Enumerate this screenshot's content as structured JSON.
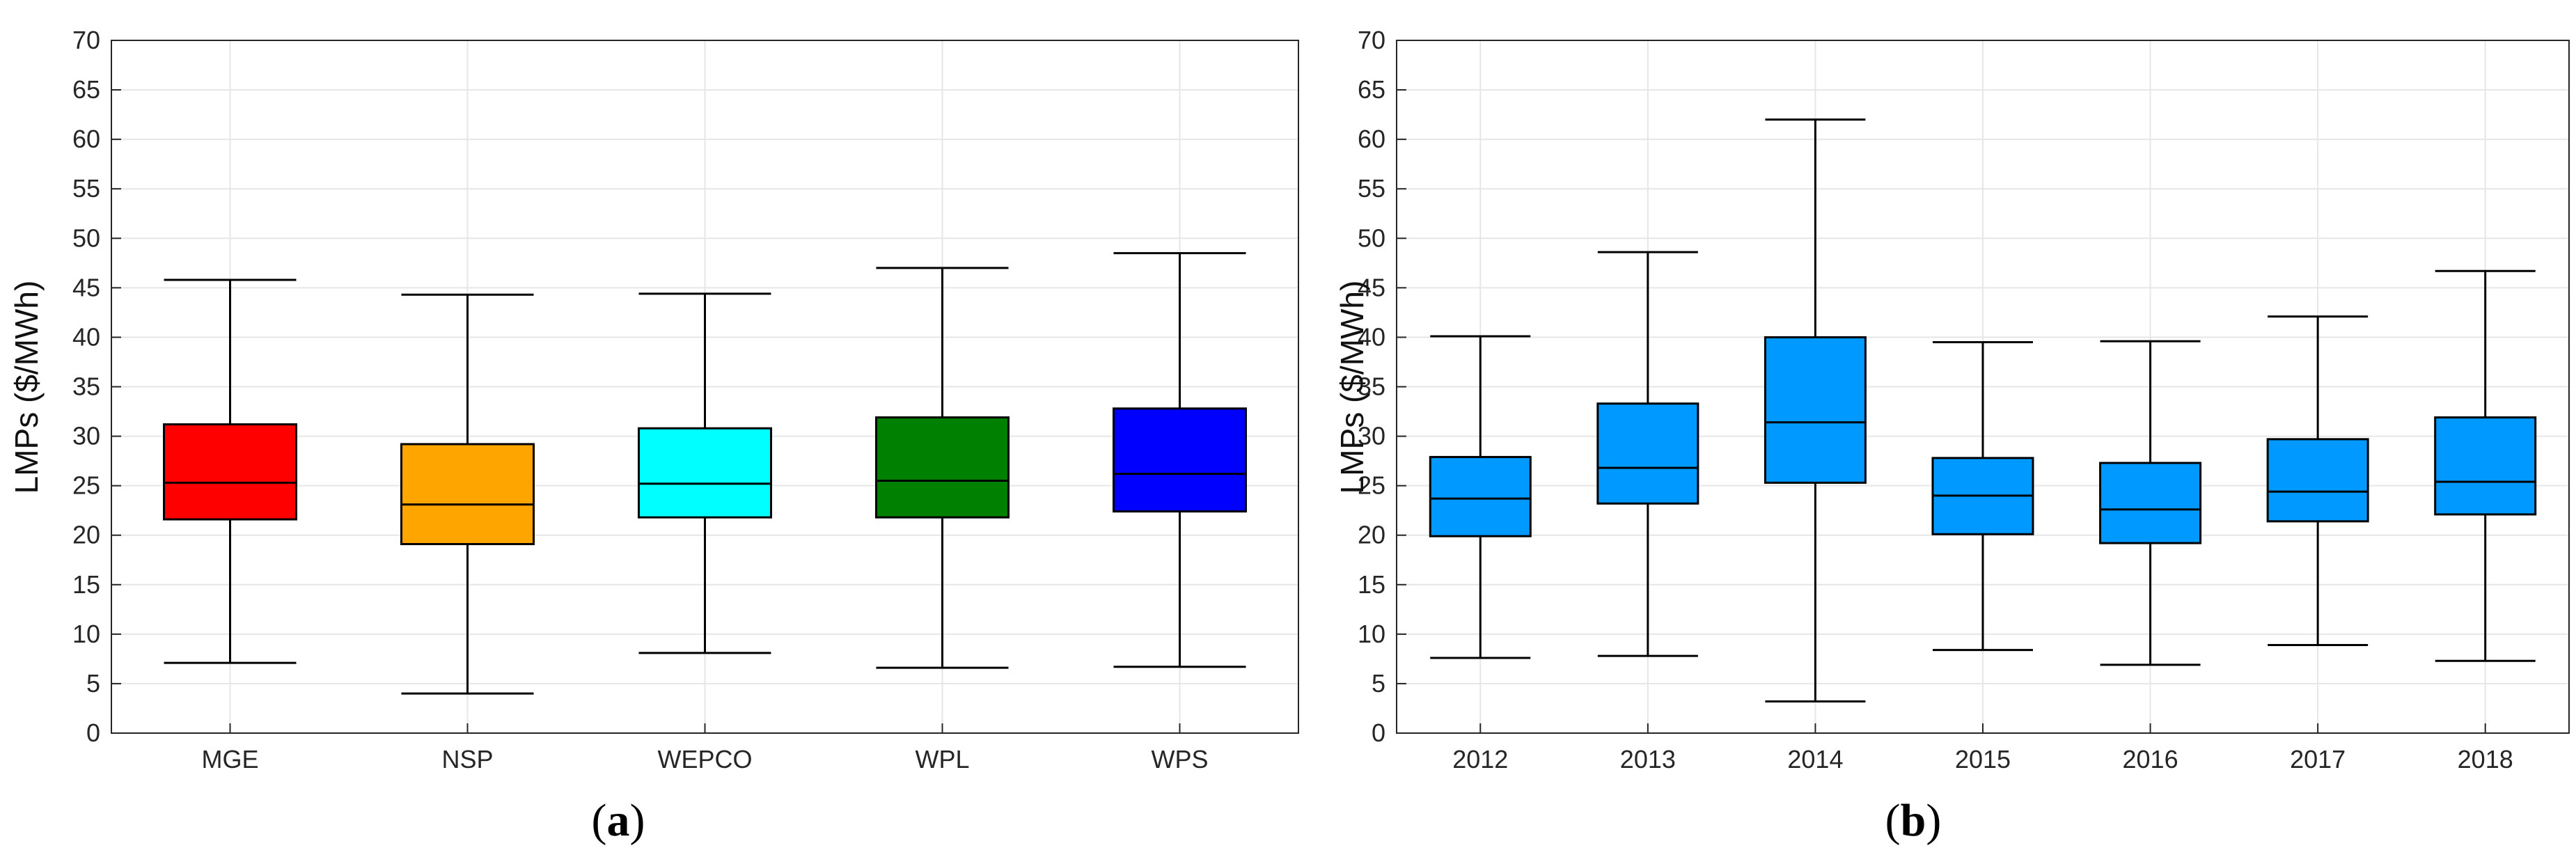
{
  "chart_data": [
    {
      "type": "box",
      "panel_label": "(a)",
      "panel_letter": "a",
      "ylabel": "LMPs ($/MWh)",
      "xlabel": "",
      "ylim": [
        0,
        70
      ],
      "yticks": [
        "0",
        "5",
        "10",
        "15",
        "20",
        "25",
        "30",
        "35",
        "40",
        "45",
        "50",
        "55",
        "60",
        "65",
        "70"
      ],
      "grid": true,
      "categories": [
        "MGE",
        "NSP",
        "WEPCO",
        "WPL",
        "WPS"
      ],
      "colors": [
        "#ff0000",
        "#ffa500",
        "#00ffff",
        "#008000",
        "#0000ff"
      ],
      "boxes": [
        {
          "whisker_low": 7.1,
          "q1": 21.6,
          "median": 25.3,
          "q3": 31.2,
          "whisker_high": 45.8
        },
        {
          "whisker_low": 4.0,
          "q1": 19.1,
          "median": 23.1,
          "q3": 29.2,
          "whisker_high": 44.3
        },
        {
          "whisker_low": 8.1,
          "q1": 21.8,
          "median": 25.2,
          "q3": 30.8,
          "whisker_high": 44.4
        },
        {
          "whisker_low": 6.6,
          "q1": 21.8,
          "median": 25.5,
          "q3": 31.9,
          "whisker_high": 47.0
        },
        {
          "whisker_low": 6.7,
          "q1": 22.4,
          "median": 26.2,
          "q3": 32.8,
          "whisker_high": 48.5
        }
      ]
    },
    {
      "type": "box",
      "panel_label": "(b)",
      "panel_letter": "b",
      "ylabel": "LMPs ($/MWh)",
      "xlabel": "",
      "ylim": [
        0,
        70
      ],
      "yticks": [
        "0",
        "5",
        "10",
        "15",
        "20",
        "25",
        "30",
        "35",
        "40",
        "45",
        "50",
        "55",
        "60",
        "65",
        "70"
      ],
      "grid": true,
      "categories": [
        "2012",
        "2013",
        "2014",
        "2015",
        "2016",
        "2017",
        "2018"
      ],
      "colors": [
        "#0099ff"
      ],
      "boxes": [
        {
          "whisker_low": 7.6,
          "q1": 19.9,
          "median": 23.7,
          "q3": 27.9,
          "whisker_high": 40.1
        },
        {
          "whisker_low": 7.8,
          "q1": 23.2,
          "median": 26.8,
          "q3": 33.3,
          "whisker_high": 48.6
        },
        {
          "whisker_low": 3.2,
          "q1": 25.3,
          "median": 31.4,
          "q3": 40.0,
          "whisker_high": 62.0
        },
        {
          "whisker_low": 8.4,
          "q1": 20.1,
          "median": 24.0,
          "q3": 27.8,
          "whisker_high": 39.5
        },
        {
          "whisker_low": 6.9,
          "q1": 19.2,
          "median": 22.6,
          "q3": 27.3,
          "whisker_high": 39.6
        },
        {
          "whisker_low": 8.9,
          "q1": 21.4,
          "median": 24.4,
          "q3": 29.7,
          "whisker_high": 42.1
        },
        {
          "whisker_low": 7.3,
          "q1": 22.1,
          "median": 25.4,
          "q3": 31.9,
          "whisker_high": 46.7
        }
      ]
    }
  ]
}
